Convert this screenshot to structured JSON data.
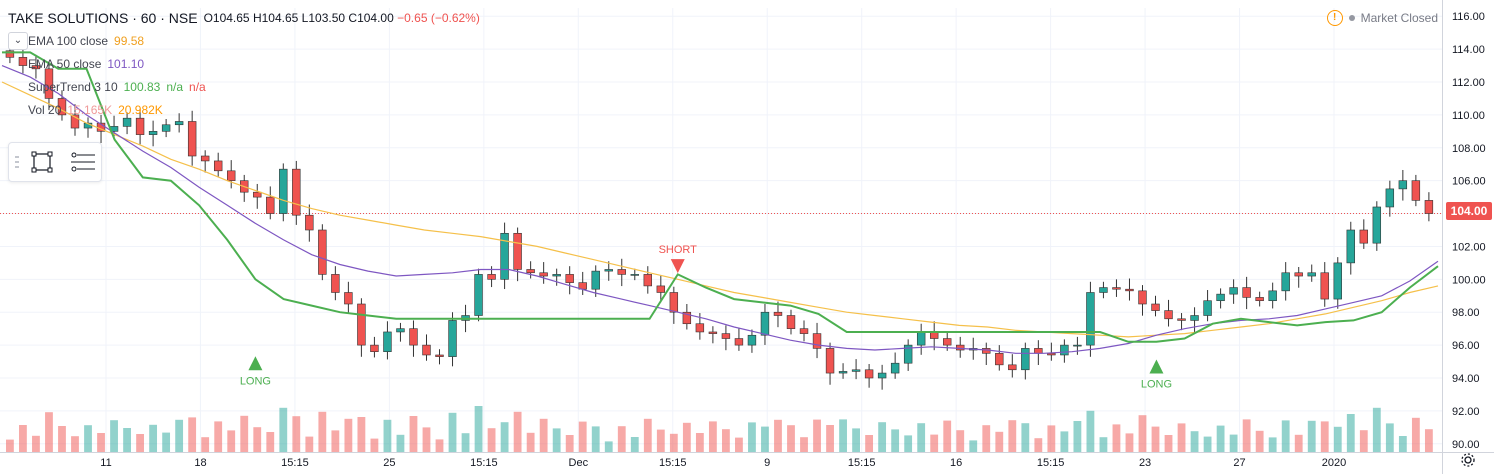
{
  "header": {
    "title": "TAKE SOLUTIONS · 60 · NSE",
    "ohlc": {
      "o_label": "O",
      "o": "104.65",
      "h_label": "H",
      "h": "104.65",
      "l_label": "L",
      "l": "103.50",
      "c_label": "C",
      "c": "104.00",
      "change": "−0.65 (−0.62%)"
    },
    "indicators": [
      {
        "label": "EMA 100 close",
        "value": "99.58"
      },
      {
        "label": "EMA 50 close",
        "value": "101.10"
      },
      {
        "label": "SuperTrend 3 10",
        "value": "100.83",
        "extra1": "n/a",
        "extra2": "n/a"
      },
      {
        "label": "Vol 20",
        "value": "15.165K",
        "extra1": "20.982K"
      }
    ]
  },
  "status": {
    "market": "Market Closed"
  },
  "current_price": "104.00",
  "colors": {
    "up": "#26a69a",
    "down": "#ef5350",
    "ema100": "#f5c04a",
    "ema50": "#7e57c2",
    "supertrend_up": "#4caf50",
    "supertrend_down": "#ef5350"
  },
  "chart_data": {
    "type": "candlestick",
    "y_axis": {
      "min": 89.5,
      "max": 116.5,
      "ticks": [
        "116.00",
        "114.00",
        "112.00",
        "110.00",
        "108.00",
        "106.00",
        "104.00",
        "102.00",
        "100.00",
        "98.00",
        "96.00",
        "94.00",
        "92.00",
        "90.00"
      ]
    },
    "x_ticks": [
      "11",
      "18",
      "15:15",
      "25",
      "15:15",
      "Dec",
      "15:15",
      "9",
      "15:15",
      "16",
      "15:15",
      "23",
      "27",
      "2020"
    ],
    "signals": [
      {
        "label": "LONG",
        "type": "long"
      },
      {
        "label": "SHORT",
        "type": "short"
      },
      {
        "label": "LONG",
        "type": "long"
      }
    ],
    "candles_close": [
      113.5,
      113.0,
      112.8,
      111.0,
      110.0,
      109.2,
      109.5,
      109.0,
      109.3,
      109.8,
      108.8,
      109.0,
      109.4,
      109.6,
      107.5,
      107.2,
      106.6,
      106.0,
      105.3,
      105.0,
      104.0,
      106.7,
      103.9,
      103.0,
      100.3,
      99.2,
      98.5,
      96.0,
      95.6,
      96.8,
      97.0,
      96.0,
      95.4,
      95.3,
      97.5,
      97.8,
      100.3,
      100.0,
      102.8,
      100.6,
      100.4,
      100.2,
      100.3,
      99.8,
      99.4,
      100.5,
      100.6,
      100.3,
      100.3,
      99.6,
      99.2,
      98.0,
      97.3,
      96.8,
      96.7,
      96.4,
      96.0,
      96.6,
      98.0,
      97.8,
      97.0,
      96.7,
      95.8,
      94.3,
      94.4,
      94.5,
      94.0,
      94.3,
      94.9,
      96.0,
      96.8,
      96.4,
      96.0,
      95.7,
      95.8,
      95.5,
      94.8,
      94.5,
      95.8,
      95.5,
      95.4,
      96.0,
      96.0,
      99.2,
      99.5,
      99.4,
      99.3,
      98.5,
      98.1,
      97.6,
      97.5,
      97.8,
      98.7,
      99.1,
      99.5,
      98.9,
      98.7,
      99.3,
      100.4,
      100.2,
      100.4,
      98.8,
      101.0,
      103.0,
      102.2,
      104.4,
      105.5,
      106.0,
      104.8,
      104.0
    ],
    "ema100": [
      112.0,
      111.2,
      110.4,
      109.5,
      108.8,
      108.1,
      107.3,
      106.7,
      106.0,
      105.4,
      104.8,
      104.3,
      103.9,
      103.6,
      103.3,
      103.0,
      102.8,
      102.6,
      102.3,
      102.0,
      101.6,
      101.2,
      100.8,
      100.4,
      100.0,
      99.6,
      99.2,
      98.9,
      98.6,
      98.3,
      98.0,
      97.8,
      97.6,
      97.4,
      97.2,
      97.1,
      96.9,
      96.8,
      96.7,
      96.6,
      96.5,
      96.6,
      96.7,
      96.9,
      97.1,
      97.3,
      97.6,
      97.9,
      98.3,
      98.7,
      99.2,
      99.6
    ],
    "ema50": [
      113.0,
      112.3,
      111.3,
      110.0,
      108.9,
      107.8,
      106.8,
      105.6,
      104.5,
      103.4,
      102.4,
      101.5,
      100.9,
      100.5,
      100.2,
      100.3,
      100.4,
      100.6,
      100.6,
      100.2,
      99.7,
      99.2,
      98.8,
      98.4,
      98.0,
      97.6,
      97.1,
      96.7,
      96.3,
      96.0,
      95.8,
      95.7,
      95.8,
      95.9,
      95.8,
      95.7,
      95.5,
      95.5,
      95.6,
      95.8,
      96.1,
      96.6,
      97.0,
      97.3,
      97.5,
      97.6,
      97.8,
      98.2,
      98.6,
      99.0,
      99.9,
      101.1
    ],
    "supertrend": [
      113.8,
      113.8,
      112.8,
      112.8,
      108.5,
      106.2,
      106.0,
      104.5,
      102.4,
      100.0,
      98.8,
      98.4,
      98.0,
      97.8,
      97.6,
      97.6,
      97.6,
      97.6,
      97.6,
      97.6,
      97.6,
      97.6,
      97.6,
      97.6,
      100.3,
      99.5,
      98.8,
      98.6,
      98.4,
      97.9,
      96.8,
      96.8,
      96.8,
      96.8,
      96.8,
      96.8,
      96.8,
      96.8,
      96.8,
      96.8,
      96.2,
      96.2,
      96.4,
      97.3,
      97.6,
      97.4,
      97.2,
      97.4,
      97.5,
      98.0,
      99.5,
      100.8
    ]
  }
}
